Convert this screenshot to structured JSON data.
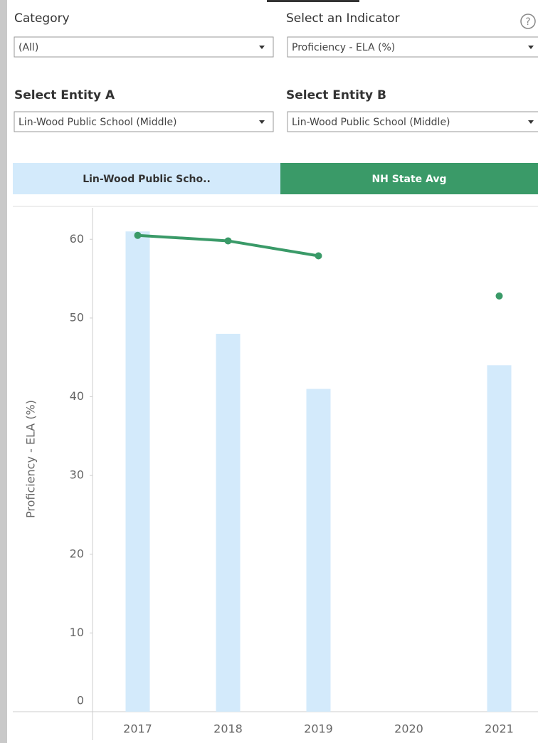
{
  "filters": [
    {
      "label": "Category",
      "value": "(All)"
    },
    {
      "label": "Select an Indicator",
      "value": "Proficiency - ELA (%)"
    },
    {
      "label": "Select Entity A",
      "value": "Lin-Wood Public School (Middle)"
    },
    {
      "label": "Select Entity B",
      "value": "Lin-Wood Public School (Middle)"
    }
  ],
  "help": "?",
  "chart_data": {
    "type": "bar_line",
    "y_label": "Proficiency - ELA (%)",
    "categories": [
      "2017",
      "2018",
      "2019",
      "2020",
      "2021"
    ],
    "series": [
      {
        "name": "Lin-Wood Public Scho..",
        "color": "#d3eafb",
        "kind": "bar",
        "values": [
          61,
          48,
          41,
          null,
          44
        ]
      },
      {
        "name": "NH State Avg",
        "color": "#3a9a68",
        "kind": "line",
        "values": [
          60.5,
          59.8,
          57.9,
          null,
          52.8
        ]
      }
    ],
    "ylim": [
      0,
      64
    ],
    "yticks": [
      0,
      10,
      20,
      30,
      40,
      50,
      60
    ]
  }
}
